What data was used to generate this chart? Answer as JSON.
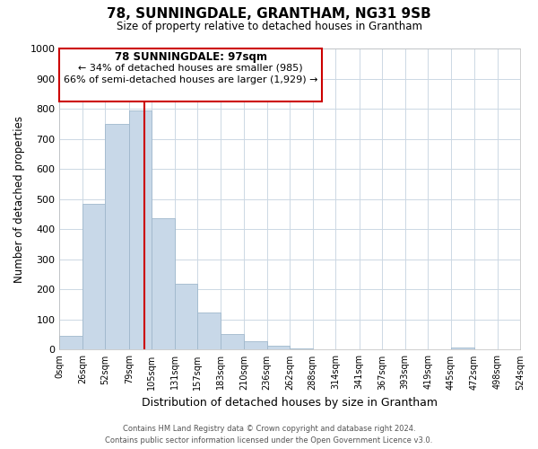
{
  "title": "78, SUNNINGDALE, GRANTHAM, NG31 9SB",
  "subtitle": "Size of property relative to detached houses in Grantham",
  "xlabel": "Distribution of detached houses by size in Grantham",
  "ylabel": "Number of detached properties",
  "bar_edges": [
    0,
    26,
    52,
    79,
    105,
    131,
    157,
    183,
    210,
    236,
    262,
    288,
    314,
    341,
    367,
    393,
    419,
    445,
    472,
    498,
    524
  ],
  "bar_heights": [
    45,
    485,
    750,
    795,
    438,
    220,
    125,
    52,
    28,
    12,
    5,
    2,
    0,
    2,
    0,
    0,
    0,
    8,
    0,
    0
  ],
  "bar_color": "#c8d8e8",
  "bar_edgecolor": "#a0b8cc",
  "vline_x": 97,
  "vline_color": "#cc0000",
  "ylim": [
    0,
    1000
  ],
  "yticks": [
    0,
    100,
    200,
    300,
    400,
    500,
    600,
    700,
    800,
    900,
    1000
  ],
  "xtick_labels": [
    "0sqm",
    "26sqm",
    "52sqm",
    "79sqm",
    "105sqm",
    "131sqm",
    "157sqm",
    "183sqm",
    "210sqm",
    "236sqm",
    "262sqm",
    "288sqm",
    "314sqm",
    "341sqm",
    "367sqm",
    "393sqm",
    "419sqm",
    "445sqm",
    "472sqm",
    "498sqm",
    "524sqm"
  ],
  "annotation_line1": "78 SUNNINGDALE: 97sqm",
  "annotation_line2": "← 34% of detached houses are smaller (985)",
  "annotation_line3": "66% of semi-detached houses are larger (1,929) →",
  "footer_line1": "Contains HM Land Registry data © Crown copyright and database right 2024.",
  "footer_line2": "Contains public sector information licensed under the Open Government Licence v3.0.",
  "bg_color": "#ffffff",
  "grid_color": "#ccd8e4"
}
